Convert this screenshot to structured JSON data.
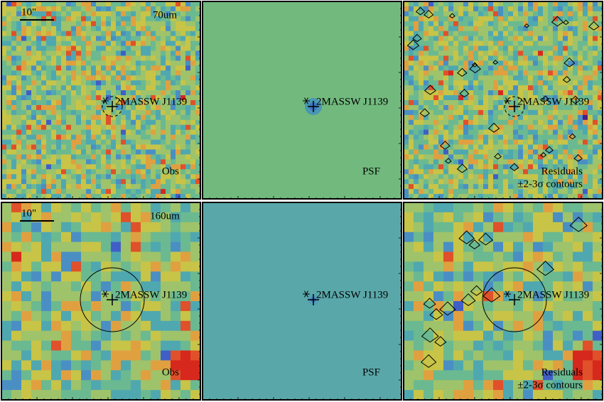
{
  "source_label": "2MASSW J1139",
  "rows": [
    {
      "scale_bar": "10\"",
      "band": "70um",
      "panels": [
        {
          "label": "Obs"
        },
        {
          "label": "PSF"
        },
        {
          "label": "Residuals",
          "contours": "±2-3σ contours"
        }
      ]
    },
    {
      "scale_bar": "10\"",
      "band": "160um",
      "panels": [
        {
          "label": "Obs"
        },
        {
          "label": "PSF"
        },
        {
          "label": "Residuals",
          "contours": "±2-3σ contours"
        }
      ]
    }
  ]
}
